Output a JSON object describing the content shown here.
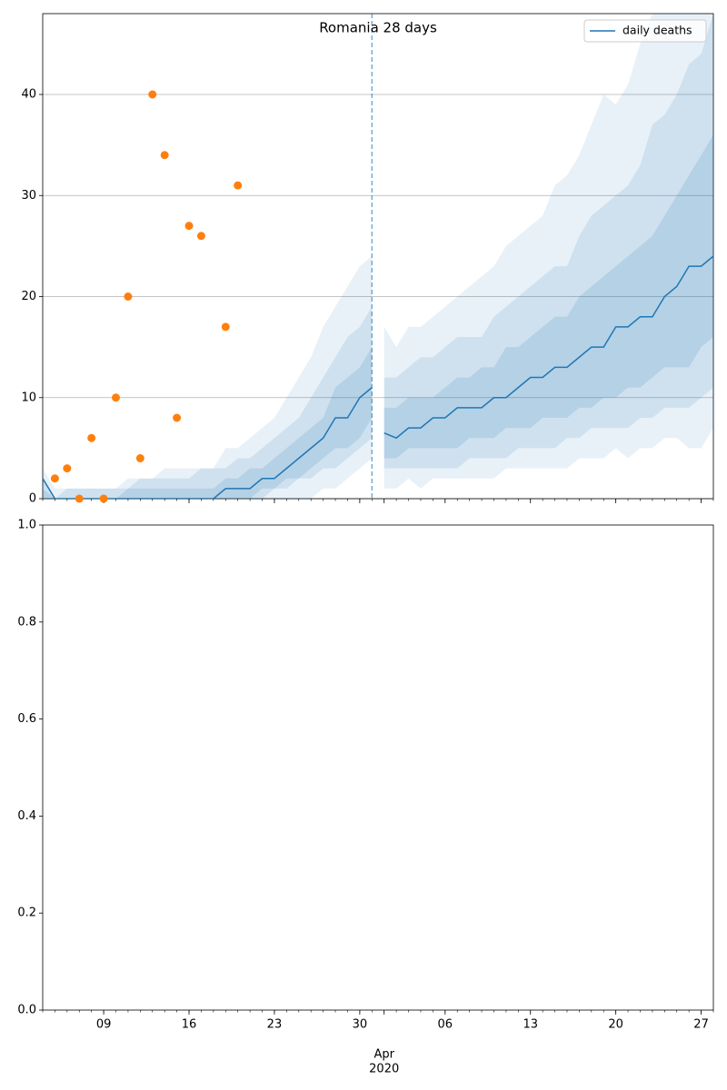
{
  "chart_data": [
    {
      "type": "line",
      "title": "Romania 28 days",
      "x": [
        "2020-03-04",
        "2020-03-05",
        "2020-03-06",
        "2020-03-07",
        "2020-03-08",
        "2020-03-09",
        "2020-03-10",
        "2020-03-11",
        "2020-03-12",
        "2020-03-13",
        "2020-03-14",
        "2020-03-15",
        "2020-03-16",
        "2020-03-17",
        "2020-03-18",
        "2020-03-19",
        "2020-03-20",
        "2020-03-21",
        "2020-03-22",
        "2020-03-23",
        "2020-03-24",
        "2020-03-25",
        "2020-03-26",
        "2020-03-27",
        "2020-03-28",
        "2020-03-29",
        "2020-03-30",
        "2020-03-31",
        "2020-04-01",
        "2020-04-02",
        "2020-04-03",
        "2020-04-04",
        "2020-04-05",
        "2020-04-06",
        "2020-04-07",
        "2020-04-08",
        "2020-04-09",
        "2020-04-10",
        "2020-04-11",
        "2020-04-12",
        "2020-04-13",
        "2020-04-14",
        "2020-04-15",
        "2020-04-16",
        "2020-04-17",
        "2020-04-18",
        "2020-04-19",
        "2020-04-20",
        "2020-04-21",
        "2020-04-22",
        "2020-04-23",
        "2020-04-24",
        "2020-04-25",
        "2020-04-26",
        "2020-04-27",
        "2020-04-28"
      ],
      "series": [
        {
          "name": "daily deaths",
          "color": "#1f77b4",
          "values": [
            2,
            0,
            0,
            0,
            0,
            0,
            0,
            0,
            0,
            0,
            0,
            0,
            0,
            0,
            0,
            1,
            1,
            1,
            2,
            2,
            3,
            4,
            5,
            6,
            8,
            8,
            10,
            11,
            6.5,
            6,
            7,
            7,
            8,
            8,
            9,
            9,
            9,
            10,
            10,
            11,
            12,
            12,
            13,
            13,
            14,
            15,
            15,
            17,
            17,
            18,
            18,
            20,
            21,
            23,
            23,
            24
          ]
        }
      ],
      "bands": [
        {
          "opacity": 0.1,
          "lower": [
            0,
            0,
            0,
            0,
            0,
            0,
            0,
            0,
            0,
            0,
            0,
            0,
            0,
            0,
            0,
            0,
            0,
            0,
            0,
            0,
            0,
            0,
            0,
            1,
            1,
            2,
            3,
            4,
            1,
            1,
            2,
            1,
            2,
            2,
            2,
            2,
            2,
            2,
            3,
            3,
            3,
            3,
            3,
            3,
            4,
            4,
            4,
            5,
            4,
            5,
            5,
            6,
            6,
            5,
            5,
            7
          ],
          "upper": [
            3,
            1,
            1,
            1,
            1,
            1,
            1,
            2,
            2,
            2,
            3,
            3,
            3,
            3,
            3,
            5,
            5,
            6,
            7,
            8,
            10,
            12,
            14,
            17,
            19,
            21,
            23,
            24,
            17,
            15,
            17,
            17,
            18,
            19,
            20,
            21,
            22,
            23,
            25,
            26,
            27,
            28,
            31,
            32,
            34,
            37,
            40,
            39,
            41,
            45,
            48,
            50,
            50,
            50,
            50,
            50
          ]
        },
        {
          "opacity": 0.12,
          "lower": [
            0,
            0,
            0,
            0,
            0,
            0,
            0,
            0,
            0,
            0,
            0,
            0,
            0,
            0,
            0,
            0,
            0,
            0,
            0,
            1,
            1,
            2,
            2,
            3,
            3,
            4,
            5,
            6,
            3,
            3,
            3,
            3,
            3,
            3,
            3,
            4,
            4,
            4,
            4,
            5,
            5,
            5,
            5,
            6,
            6,
            7,
            7,
            7,
            7,
            8,
            8,
            9,
            9,
            9,
            10,
            11
          ],
          "upper": [
            2,
            0,
            1,
            1,
            1,
            1,
            1,
            1,
            2,
            2,
            2,
            2,
            2,
            3,
            3,
            3,
            4,
            4,
            5,
            6,
            7,
            8,
            10,
            12,
            14,
            16,
            17,
            19,
            12,
            12,
            13,
            14,
            14,
            15,
            16,
            16,
            16,
            18,
            19,
            20,
            21,
            22,
            23,
            23,
            26,
            28,
            29,
            30,
            31,
            33,
            37,
            38,
            40,
            43,
            44,
            48
          ]
        },
        {
          "opacity": 0.15,
          "lower": [
            0,
            0,
            0,
            0,
            0,
            0,
            0,
            0,
            0,
            0,
            0,
            0,
            0,
            0,
            0,
            0,
            0,
            0,
            1,
            1,
            2,
            2,
            3,
            4,
            5,
            5,
            6,
            8,
            4,
            4,
            5,
            5,
            5,
            5,
            5,
            6,
            6,
            6,
            7,
            7,
            7,
            8,
            8,
            8,
            9,
            9,
            10,
            10,
            11,
            11,
            12,
            13,
            13,
            13,
            15,
            16
          ],
          "upper": [
            1,
            0,
            0,
            0,
            0,
            0,
            0,
            1,
            1,
            1,
            1,
            1,
            1,
            1,
            1,
            2,
            2,
            3,
            3,
            4,
            5,
            6,
            7,
            8,
            11,
            12,
            13,
            15,
            9,
            9,
            10,
            10,
            10,
            11,
            12,
            12,
            13,
            13,
            15,
            15,
            16,
            17,
            18,
            18,
            20,
            21,
            22,
            23,
            24,
            25,
            26,
            28,
            30,
            32,
            34,
            36
          ]
        }
      ],
      "scatter": {
        "color": "#ff7f0e",
        "x": [
          "2020-03-05",
          "2020-03-06",
          "2020-03-07",
          "2020-03-08",
          "2020-03-09",
          "2020-03-10",
          "2020-03-11",
          "2020-03-12",
          "2020-03-13",
          "2020-03-14",
          "2020-03-15",
          "2020-03-16",
          "2020-03-17",
          "2020-03-19",
          "2020-03-20"
        ],
        "values": [
          2,
          3,
          0,
          6,
          0,
          10,
          20,
          4,
          40,
          34,
          8,
          27,
          26,
          17,
          31
        ]
      },
      "vline": "2020-03-31",
      "ylim": [
        0,
        48
      ],
      "yticks": [
        0,
        10,
        20,
        30,
        40
      ],
      "grid": true,
      "legend": "upper right"
    },
    {
      "type": "line",
      "xlim": [
        "2020-03-04",
        "2020-04-28"
      ],
      "xticks": [
        {
          "value": "2020-03-09",
          "label": "09"
        },
        {
          "value": "2020-03-16",
          "label": "16"
        },
        {
          "value": "2020-03-23",
          "label": "23"
        },
        {
          "value": "2020-03-30",
          "label": "30"
        },
        {
          "value": "2020-04-01",
          "label": "Apr",
          "sublabel": "2020"
        },
        {
          "value": "2020-04-06",
          "label": "06"
        },
        {
          "value": "2020-04-13",
          "label": "13"
        },
        {
          "value": "2020-04-20",
          "label": "20"
        },
        {
          "value": "2020-04-27",
          "label": "27"
        }
      ],
      "ylim": [
        0,
        1
      ],
      "yticks": [
        {
          "value": 0,
          "label": "0.0"
        },
        0.2,
        0.4,
        0.6,
        0.8,
        {
          "value": 1,
          "label": "1.0"
        }
      ],
      "grid": false
    }
  ]
}
